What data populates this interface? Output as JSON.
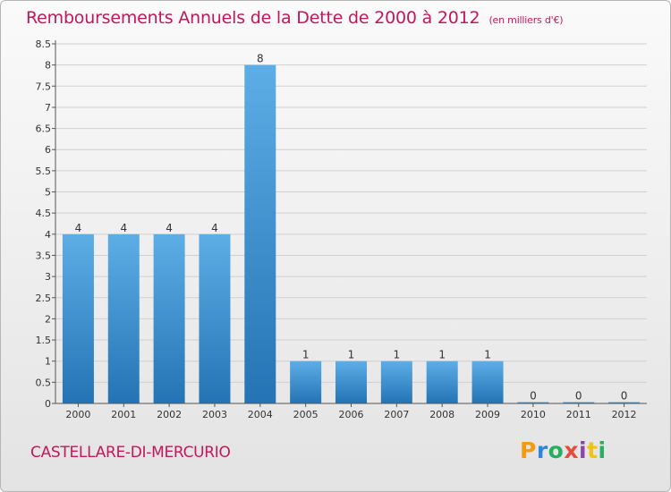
{
  "chart_data": {
    "type": "bar",
    "title": "Remboursements Annuels de la Dette de 2000 à 2012",
    "unit": "(en milliers d'€)",
    "categories": [
      "2000",
      "2001",
      "2002",
      "2003",
      "2004",
      "2005",
      "2006",
      "2007",
      "2008",
      "2009",
      "2010",
      "2011",
      "2012"
    ],
    "values": [
      4,
      4,
      4,
      4,
      8,
      1,
      1,
      1,
      1,
      1,
      0,
      0,
      0
    ],
    "value_labels": [
      "4",
      "4",
      "4",
      "4",
      "8",
      "1",
      "1",
      "1",
      "1",
      "1",
      "0",
      "0",
      "0"
    ],
    "ylim": [
      0,
      8.5
    ],
    "yticks": [
      0,
      0.5,
      1,
      1.5,
      2,
      2.5,
      3,
      3.5,
      4,
      4.5,
      5,
      5.5,
      6,
      6.5,
      7,
      7.5,
      8,
      8.5
    ],
    "ytick_labels": [
      "0",
      "0.5",
      "1",
      "1.5",
      "2",
      "2.5",
      "3",
      "3.5",
      "4",
      "4.5",
      "5",
      "5.5",
      "6",
      "6.5",
      "7",
      "7.5",
      "8",
      "8.5"
    ],
    "grid": true,
    "bar_color": "#3d8fd6"
  },
  "commune": "CASTELLARE-DI-MERCURIO",
  "logo": {
    "letters": [
      "P",
      "r",
      "o",
      "x",
      "i",
      "t",
      "i"
    ],
    "colors": [
      "#f39c12",
      "#2e86de",
      "#27ae60",
      "#e74c3c",
      "#8e44ad",
      "#f1c40f",
      "#27ae60"
    ]
  }
}
